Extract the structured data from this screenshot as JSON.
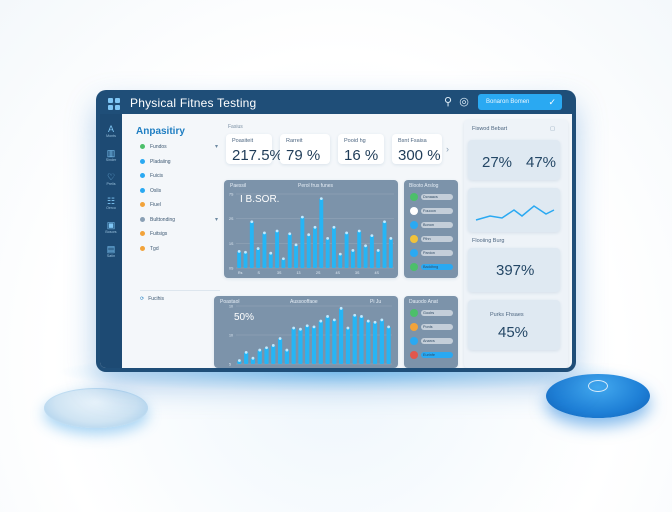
{
  "app": {
    "title": "Physical Fitnes Testing"
  },
  "toolbar": {
    "button_label": "Bonaron Bomen"
  },
  "nav": [
    {
      "icon": "a-letter-icon",
      "glyph": "A",
      "label": "Monts"
    },
    {
      "icon": "chart-icon",
      "glyph": "▥",
      "label": "Sinder"
    },
    {
      "icon": "heart-icon",
      "glyph": "♡",
      "label": "Prelis"
    },
    {
      "icon": "people-icon",
      "glyph": "☷",
      "label": "Oerco"
    },
    {
      "icon": "box-icon",
      "glyph": "▣",
      "label": "Bosors"
    },
    {
      "icon": "doc-icon",
      "glyph": "▤",
      "label": "Satin"
    }
  ],
  "sidebar": {
    "title": "Anpasitiry",
    "items": [
      {
        "label": "Fundos",
        "color": "#4cbf6a"
      },
      {
        "label": "Pladaiing",
        "color": "#2aa9f2"
      },
      {
        "label": "Fuicis",
        "color": "#2aa9f2"
      },
      {
        "label": "Oslis",
        "color": "#2aa9f2"
      },
      {
        "label": "Fiuel",
        "color": "#f2a33a"
      },
      {
        "label": "Bulttonding",
        "color": "#8aa0b5"
      },
      {
        "label": "Fuitsigs",
        "color": "#f2a33a"
      },
      {
        "label": "Tgd",
        "color": "#f2a33a"
      }
    ],
    "footer": "Fucihis"
  },
  "stats": {
    "section_label": "Fasius",
    "cards": [
      {
        "label": "Poasiteit",
        "value": "217.5%"
      },
      {
        "label": "Rarreit",
        "value": "79 %"
      },
      {
        "label": "Pooid hg",
        "value": "16 %"
      },
      {
        "label": "Bsnt Fsaisa",
        "value": "300 %"
      }
    ]
  },
  "chart_main": {
    "title": "Paessil",
    "subtitle": "Perol frus funes",
    "big_label": "I B.SOR.",
    "yticks": [
      "7S",
      "2S",
      "1S",
      "0S"
    ],
    "xticks": [
      "Rs",
      "S",
      "3S",
      "13",
      "2S",
      "4S",
      "3S",
      "4S"
    ]
  },
  "chart_bottom": {
    "title": "Poastaol",
    "subtitle": "Aussooffaoe",
    "corner": "Pi Ju",
    "big_label": "50%",
    "yticks": [
      "10",
      "10",
      "5"
    ]
  },
  "chart_data": [
    {
      "type": "bar",
      "values": [
        18,
        17,
        50,
        21,
        38,
        16,
        40,
        10,
        37,
        25,
        55,
        36,
        44,
        75,
        32,
        44,
        15,
        38,
        19,
        40,
        24,
        35,
        19,
        50,
        32
      ]
    },
    {
      "type": "bar",
      "values": [
        3,
        10,
        5,
        12,
        14,
        16,
        22,
        12,
        31,
        30,
        33,
        32,
        37,
        41,
        38,
        48,
        31,
        42,
        41,
        37,
        36,
        38,
        32
      ]
    }
  ],
  "list_top": {
    "title": "Blooto Arslog",
    "rows": [
      "Dcnaacs",
      "Fouoon",
      "Bonon",
      "Pihn",
      "Panion",
      "Baddhng"
    ]
  },
  "list_bottom": {
    "title": "Dauodo Anat",
    "rows": [
      "Goolrs",
      "Ponls",
      "Anarcs",
      "Eurinfe"
    ]
  },
  "right_panel": {
    "title": "Fiswod Bebart",
    "kpi_a": "27%",
    "kpi_b": "47%",
    "trend_label": "Flooiing Burg",
    "card_value": "397%",
    "card2_label": "Purks Fhsaes",
    "card2_value": "45%"
  }
}
